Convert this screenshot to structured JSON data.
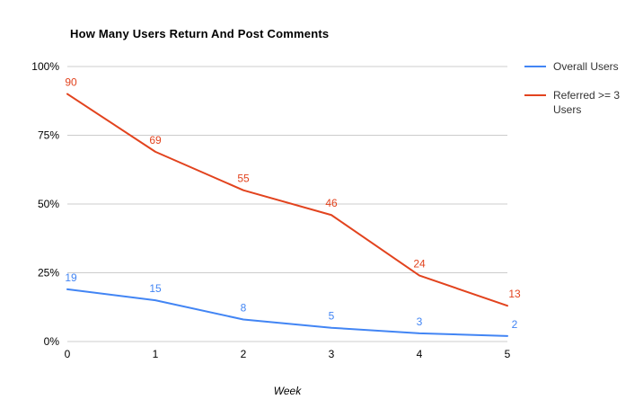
{
  "chart": {
    "title": "How Many Users Return And Post Comments",
    "x_axis_title": "Week",
    "legend": [
      {
        "label": "Overall Users",
        "color": "#4285f4"
      },
      {
        "label": "Referred >= 3 Users",
        "color": "#e2431e"
      }
    ]
  },
  "chart_data": {
    "type": "line",
    "title": "How Many Users Return And Post Comments",
    "x": [
      0,
      1,
      2,
      3,
      4,
      5
    ],
    "x_tick_labels": [
      "0",
      "1",
      "2",
      "3",
      "4",
      "5"
    ],
    "series": [
      {
        "name": "Overall Users",
        "color": "#4285f4",
        "values": [
          19,
          15,
          8,
          5,
          3,
          2
        ]
      },
      {
        "name": "Referred >= 3 Users",
        "color": "#e2431e",
        "values": [
          90,
          69,
          55,
          46,
          24,
          13
        ]
      }
    ],
    "xlabel": "Week",
    "ylabel": "",
    "ylim": [
      0,
      100
    ],
    "yticks": [
      0,
      25,
      50,
      75,
      100
    ],
    "ytick_labels": [
      "0%",
      "25%",
      "50%",
      "75%",
      "100%"
    ],
    "grid": true,
    "gridline_color": "#cccccc",
    "axis_text_color": "#000000",
    "legend_position": "right",
    "data_labels": true
  }
}
